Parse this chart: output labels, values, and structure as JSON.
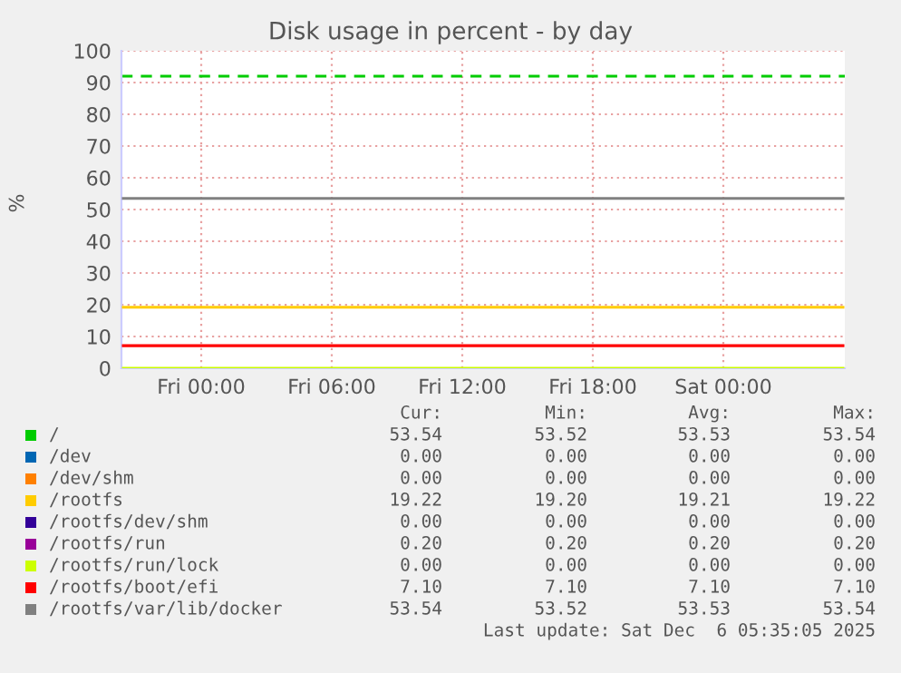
{
  "chart_data": {
    "type": "line",
    "title": "Disk usage in percent - by day",
    "ylabel": "%",
    "x": [
      "2025-12-04T20:25",
      "2025-12-06T05:30"
    ],
    "xlim": [
      "2025-12-04T20:20",
      "2025-12-06T05:35"
    ],
    "xticks": [
      {
        "value": "2025-12-05T00:00",
        "label": "Fri 00:00"
      },
      {
        "value": "2025-12-05T06:00",
        "label": "Fri 06:00"
      },
      {
        "value": "2025-12-05T12:00",
        "label": "Fri 12:00"
      },
      {
        "value": "2025-12-05T18:00",
        "label": "Fri 18:00"
      },
      {
        "value": "2025-12-06T00:00",
        "label": "Sat 00:00"
      }
    ],
    "ylim": [
      0,
      100
    ],
    "yticks": [
      0,
      10,
      20,
      30,
      40,
      50,
      60,
      70,
      80,
      90,
      100
    ],
    "grid": true,
    "legend": "bottom",
    "marker": "none",
    "line_style": "solid",
    "series": [
      {
        "name": "/",
        "color": "#00cc00",
        "values": [
          null,
          null
        ]
      },
      {
        "name": "/dev",
        "color": "#0066b3",
        "values": [
          null,
          null
        ]
      },
      {
        "name": "/dev/shm",
        "color": "#ff8000",
        "values": [
          null,
          null
        ]
      },
      {
        "name": "/rootfs",
        "color": "#ffcc00",
        "values": [
          19.2,
          19.2
        ]
      },
      {
        "name": "/rootfs/dev/shm",
        "color": "#330099",
        "values": [
          null,
          null
        ]
      },
      {
        "name": "/rootfs/run",
        "color": "#990099",
        "values": [
          null,
          null
        ]
      },
      {
        "name": "/rootfs/run/lock",
        "color": "#ccff00",
        "values": [
          0,
          0
        ]
      },
      {
        "name": "/rootfs/boot/efi",
        "color": "#ff0000",
        "values": [
          7.1,
          7.1
        ]
      },
      {
        "name": "/rootfs/var/lib/docker",
        "color": "#808080",
        "values": [
          53.5,
          53.5
        ]
      }
    ],
    "ref_lines": [
      {
        "axis": "y",
        "value": 92,
        "color": "#00cc00",
        "line_style": "dashed"
      }
    ],
    "annotations": [
      "Cur:",
      "Min:",
      "Avg:",
      "Max:",
      "53.54",
      "53.52",
      "53.53",
      "53.54",
      "0.00",
      "0.00",
      "0.00",
      "0.00",
      "0.00",
      "0.00",
      "0.00",
      "0.00",
      "19.22",
      "19.20",
      "19.21",
      "19.22",
      "0.00",
      "0.00",
      "0.00",
      "0.00",
      "0.20",
      "0.20",
      "0.20",
      "0.20",
      "0.00",
      "0.00",
      "0.00",
      "0.00",
      "7.10",
      "7.10",
      "7.10",
      "7.10",
      "53.54",
      "53.52",
      "53.53",
      "53.54",
      "Last update: Sat Dec  6 05:35:05 2025"
    ]
  }
}
